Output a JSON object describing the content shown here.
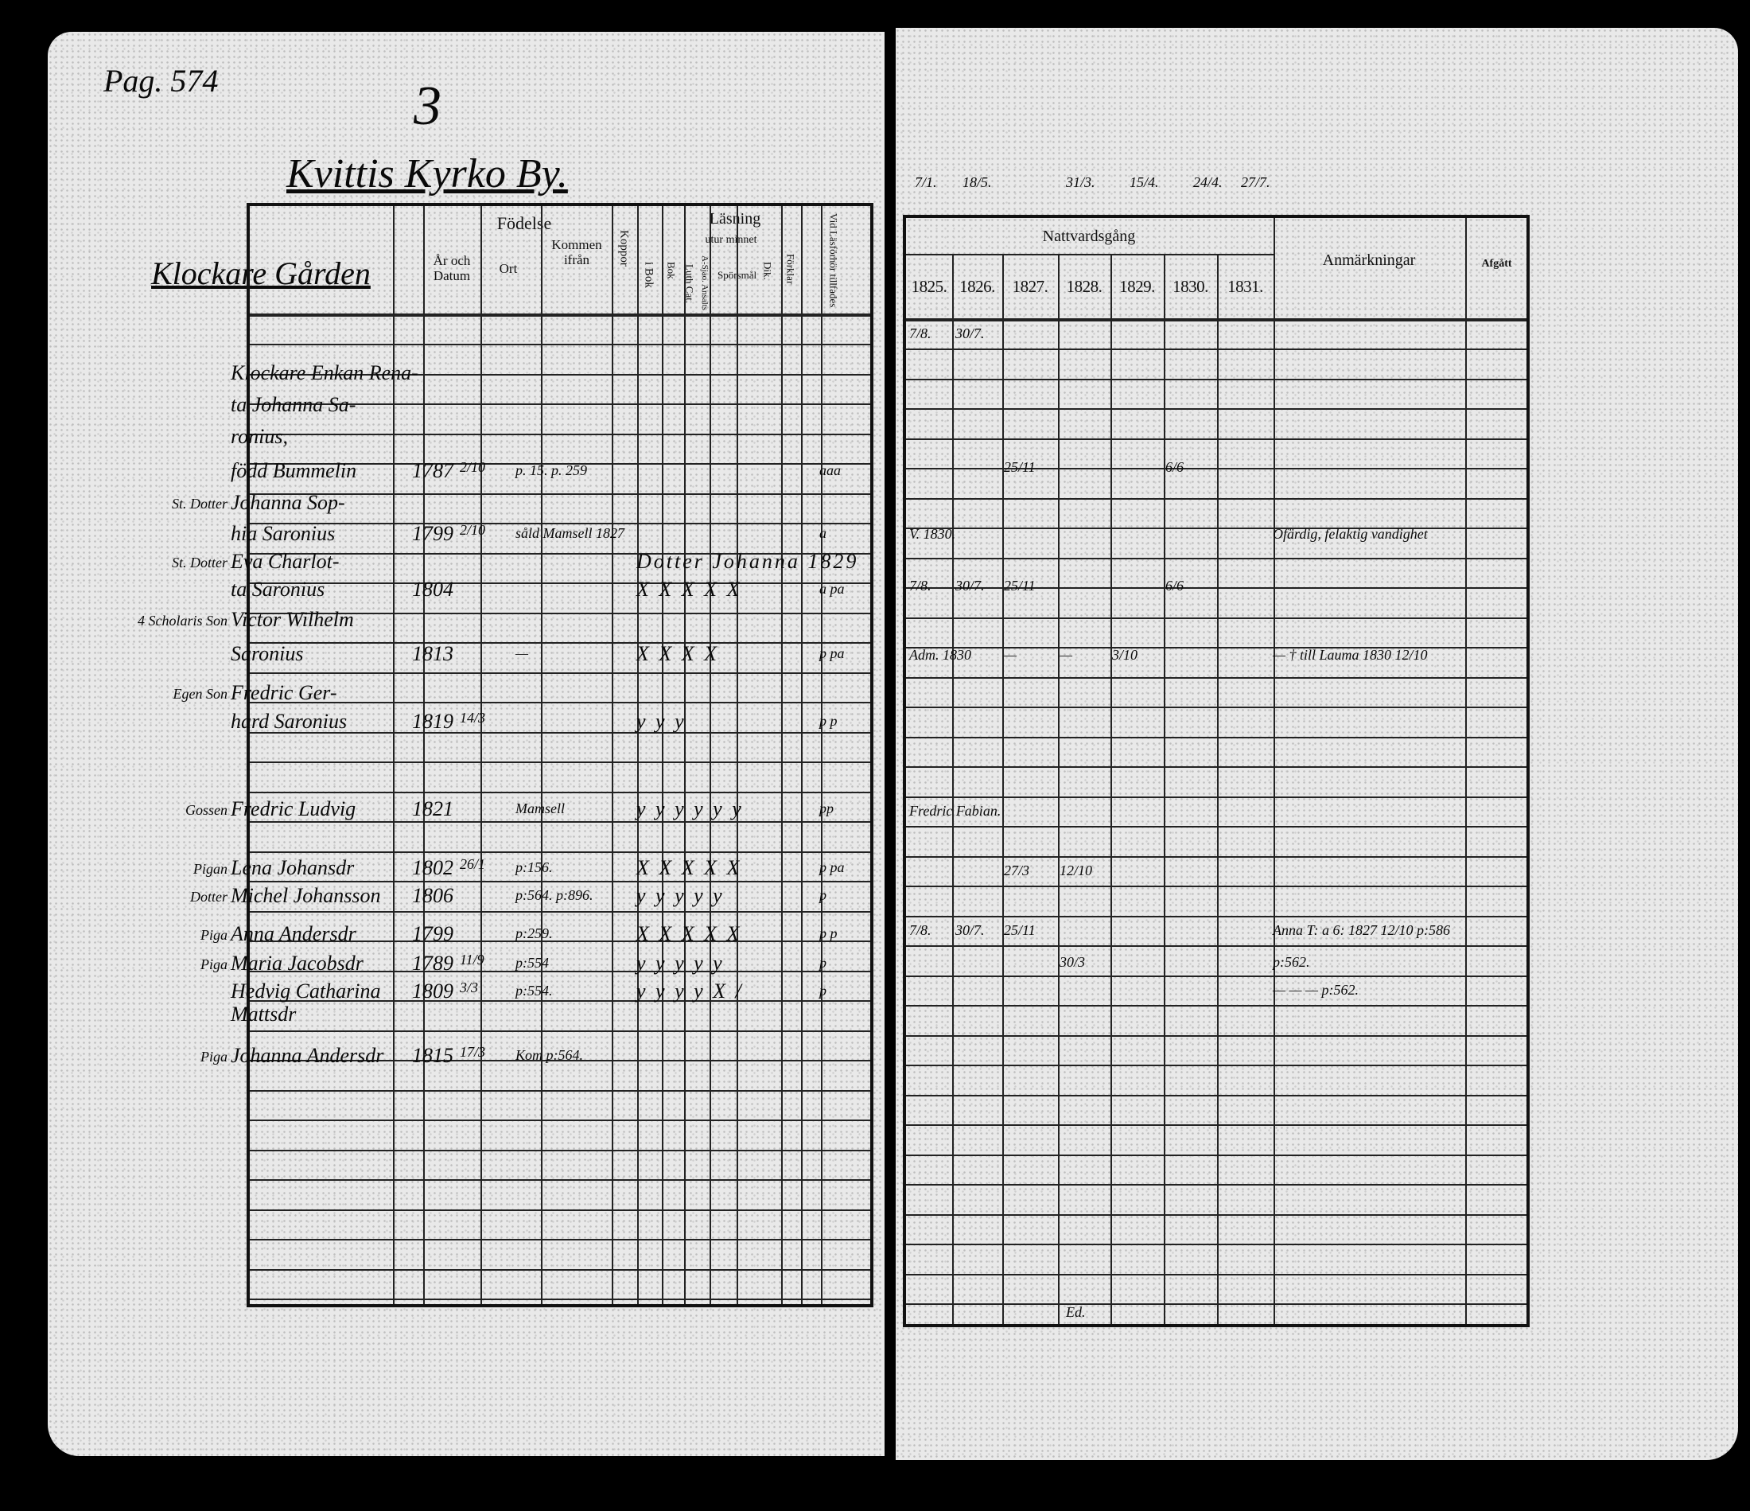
{
  "header": {
    "page_ref": "Pag. 574",
    "number": "3",
    "village": "Kvittis Kyrko By.",
    "farm": "Klockare Gården",
    "top_dates": [
      "7/1.",
      "18/5.",
      "31/3.",
      "15/4.",
      "24/4.",
      "27/7."
    ]
  },
  "left_table": {
    "headers": {
      "fodelse": "Födelse",
      "ar_datum": "År och Datum",
      "ort": "Ort",
      "kommen": "Kommen ifrån",
      "koppor": "Koppor",
      "lasning": "Läsning",
      "utur_minnet": "utur minnet",
      "i_bok": "i Bok",
      "bok": "Bok",
      "luth_cat": "Luth Cat.",
      "a_sjao": "A-Sjao. Ansalts",
      "sporsmal": "Spörsmål",
      "dik": "Dik.",
      "forklar": "Förklar",
      "lasforhor": "Vid Läsförhör tillfades"
    },
    "entries": [
      {
        "role": "",
        "name": "Klockare Enkan Rena-",
        "year": "",
        "date": "",
        "from": "",
        "reading": "",
        "forhor": ""
      },
      {
        "role": "",
        "name": "ta Johanna Sa-",
        "year": "",
        "date": "",
        "from": "",
        "reading": "",
        "forhor": ""
      },
      {
        "role": "",
        "name": "ronius,",
        "year": "",
        "date": "",
        "from": "",
        "reading": "",
        "forhor": ""
      },
      {
        "role": "",
        "name": "född Bummelin",
        "year": "1787",
        "date": "2/10",
        "from": "p. 15. p. 259",
        "reading": "",
        "forhor": "aaa"
      },
      {
        "role": "St. Dotter",
        "name": "Johanna Sop-",
        "year": "",
        "date": "",
        "from": "",
        "reading": "",
        "forhor": ""
      },
      {
        "role": "",
        "name": "hia Saronius",
        "year": "1799",
        "date": "2/10",
        "from": "såld Mamsell 1827",
        "reading": "",
        "forhor": "a"
      },
      {
        "role": "St. Dotter",
        "name": "Eva Charlot-",
        "year": "",
        "date": "",
        "from": "",
        "reading": "Dotter Johanna 1829",
        "forhor": ""
      },
      {
        "role": "",
        "name": "ta Saronius",
        "year": "1804",
        "date": "",
        "from": "",
        "reading": "X X X X X",
        "forhor": "a pa"
      },
      {
        "role": "4 Scholaris Son",
        "name": "Victor Wilhelm",
        "year": "",
        "date": "",
        "from": "",
        "reading": "",
        "forhor": ""
      },
      {
        "role": "",
        "name": "Saronius",
        "year": "1813",
        "date": "",
        "from": "—",
        "reading": "X X X X",
        "forhor": "p pa"
      },
      {
        "role": "Egen Son",
        "name": "Fredric Ger-",
        "year": "",
        "date": "",
        "from": "",
        "reading": "",
        "forhor": ""
      },
      {
        "role": "",
        "name": "hard Saronius",
        "year": "1819",
        "date": "14/3",
        "from": "",
        "reading": "y y y",
        "forhor": "p p"
      },
      {
        "role": "Gossen",
        "name": "Fredric Ludvig",
        "year": "1821",
        "date": "",
        "from": "Mamsell",
        "reading": "y y y y y y",
        "forhor": "pp"
      },
      {
        "role": "Pigan",
        "name": "Lena Johansdr",
        "year": "1802",
        "date": "26/1",
        "from": "p:156.",
        "reading": "X X X X X",
        "forhor": "p pa"
      },
      {
        "role": "Dotter",
        "name": "Michel Johansson",
        "year": "1806",
        "date": "",
        "from": "p:564. p:896.",
        "reading": "y y y y y",
        "forhor": "p"
      },
      {
        "role": "Piga",
        "name": "Anna Andersdr",
        "year": "1799",
        "date": "",
        "from": "p:259.",
        "reading": "X X X X X",
        "forhor": "p p"
      },
      {
        "role": "Piga",
        "name": "Maria Jacobsdr",
        "year": "1789",
        "date": "11/9",
        "from": "p:554",
        "reading": "y y y y y",
        "forhor": "p"
      },
      {
        "role": "",
        "name": "Hedvig Catharina Mattsdr",
        "year": "1809",
        "date": "3/3",
        "from": "p:554.",
        "reading": "y y y y X /",
        "forhor": "p"
      },
      {
        "role": "Piga",
        "name": "Johanna Andersdr",
        "year": "1815",
        "date": "17/3",
        "from": "Kom p:564.",
        "reading": "",
        "forhor": ""
      }
    ]
  },
  "right_table": {
    "headers": {
      "nattvard": "Nattvardsgång",
      "years": [
        "1825.",
        "1826.",
        "1827.",
        "1828.",
        "1829.",
        "1830.",
        "1831."
      ],
      "anmarkningar": "Anmärkningar",
      "afgatt": "Afgått"
    },
    "entries": [
      {
        "cells": [
          "7/8.",
          "30/7.",
          "",
          "",
          "",
          "",
          ""
        ],
        "remark": ""
      },
      {
        "cells": [
          "",
          "",
          "25/11",
          "",
          "",
          "6/6",
          ""
        ],
        "remark": ""
      },
      {
        "cells": [
          "V. 1830.",
          "",
          "",
          "",
          "",
          "",
          ""
        ],
        "remark": "Ofärdig, felaktig vandighet"
      },
      {
        "cells": [
          "7/8.",
          "30/7.",
          "25/11",
          "",
          "",
          "6/6",
          ""
        ],
        "remark": ""
      },
      {
        "cells": [
          "Adm. 1830",
          "",
          "—",
          "—",
          "3/10",
          "",
          ""
        ],
        "remark": "— † till Lauma 1830 12/10"
      },
      {
        "cells": [
          "Fredric Fabian.",
          "",
          "",
          "",
          "",
          "",
          ""
        ],
        "remark": ""
      },
      {
        "cells": [
          "",
          "",
          "27/3",
          "12/10",
          "",
          "",
          ""
        ],
        "remark": ""
      },
      {
        "cells": [
          "7/8.",
          "30/7.",
          "25/11",
          "",
          "",
          "",
          ""
        ],
        "remark": "Anna T: a 6: 1827 12/10 p:586"
      },
      {
        "cells": [
          "",
          "",
          "",
          "30/3",
          "",
          "",
          ""
        ],
        "remark": "p:562."
      },
      {
        "cells": [
          "",
          "",
          "",
          "",
          "",
          "",
          ""
        ],
        "remark": "— — — p:562."
      }
    ],
    "footer_mark": "Ed."
  }
}
